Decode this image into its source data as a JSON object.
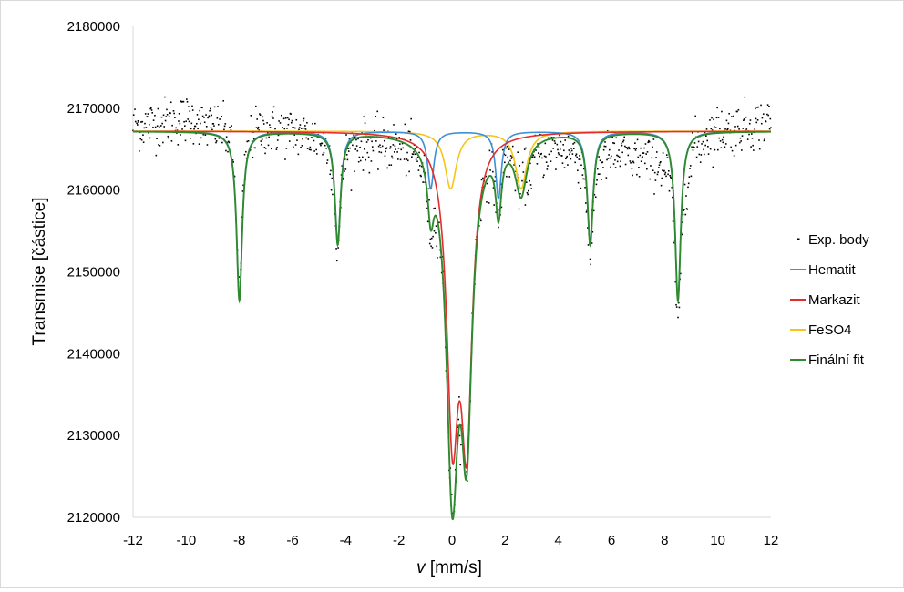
{
  "chart_data": {
    "type": "scatter",
    "title": "",
    "xlabel_var": "v",
    "xlabel_unit": " [mm/s]",
    "ylabel": "Transmise [částice]",
    "xlim": [
      -12,
      12
    ],
    "ylim": [
      2120000,
      2180000
    ],
    "x_ticks": [
      -12,
      -10,
      -8,
      -6,
      -4,
      -2,
      0,
      2,
      4,
      6,
      8,
      10,
      12
    ],
    "y_ticks": [
      2120000,
      2130000,
      2140000,
      2150000,
      2160000,
      2170000,
      2180000
    ],
    "x_tick_labels": [
      "-12",
      "-10",
      "-8",
      "-6",
      "-4",
      "-2",
      "0",
      "2",
      "4",
      "6",
      "8",
      "10",
      "12"
    ],
    "y_tick_labels": [
      "2120000",
      "2130000",
      "2140000",
      "2150000",
      "2160000",
      "2170000",
      "2180000"
    ],
    "grid": false,
    "legend_position": "right",
    "baseline": 2167200,
    "series": [
      {
        "name": "Exp. body",
        "kind": "points",
        "color": "#000000",
        "description": "experimental data points, noisy around the fit",
        "sample_points": [
          [
            -11.9,
            2168800
          ],
          [
            -11.5,
            2165500
          ],
          [
            -11.0,
            2166800
          ],
          [
            -10.5,
            2167600
          ],
          [
            -10.0,
            2166000
          ],
          [
            -9.5,
            2168300
          ],
          [
            -9.0,
            2170500
          ],
          [
            -8.6,
            2167000
          ],
          [
            -8.3,
            2163000
          ],
          [
            -8.1,
            2153000
          ],
          [
            -8.0,
            2148000
          ],
          [
            -7.9,
            2151500
          ],
          [
            -7.6,
            2161000
          ],
          [
            -7.2,
            2165000
          ],
          [
            -6.5,
            2167000
          ],
          [
            -6.0,
            2169000
          ],
          [
            -5.5,
            2168500
          ],
          [
            -5.0,
            2167500
          ],
          [
            -4.5,
            2163000
          ],
          [
            -4.3,
            2152000
          ],
          [
            -4.1,
            2157000
          ],
          [
            -3.8,
            2165500
          ],
          [
            -3.0,
            2168000
          ],
          [
            -2.5,
            2167500
          ],
          [
            -2.0,
            2169500
          ],
          [
            -1.5,
            2166000
          ],
          [
            -1.0,
            2163000
          ],
          [
            -0.85,
            2158000
          ],
          [
            -0.7,
            2153500
          ],
          [
            -0.5,
            2160500
          ],
          [
            -0.2,
            2152000
          ],
          [
            0.0,
            2126000
          ],
          [
            0.1,
            2133000
          ],
          [
            0.3,
            2145000
          ],
          [
            0.5,
            2128000
          ],
          [
            0.55,
            2126500
          ],
          [
            0.7,
            2150000
          ],
          [
            1.0,
            2160000
          ],
          [
            1.3,
            2162500
          ],
          [
            1.6,
            2158000
          ],
          [
            1.8,
            2154000
          ],
          [
            2.1,
            2162000
          ],
          [
            2.5,
            2161500
          ],
          [
            2.7,
            2159000
          ],
          [
            3.0,
            2163000
          ],
          [
            3.5,
            2164000
          ],
          [
            4.0,
            2162000
          ],
          [
            4.5,
            2160000
          ],
          [
            5.0,
            2158000
          ],
          [
            5.2,
            2149000
          ],
          [
            5.4,
            2156000
          ],
          [
            5.8,
            2162000
          ],
          [
            6.5,
            2163500
          ],
          [
            7.0,
            2162000
          ],
          [
            7.5,
            2161500
          ],
          [
            8.0,
            2158000
          ],
          [
            8.3,
            2153000
          ],
          [
            8.5,
            2145000
          ],
          [
            8.7,
            2143000
          ],
          [
            9.0,
            2160500
          ],
          [
            9.5,
            2163000
          ],
          [
            10.0,
            2165500
          ],
          [
            10.5,
            2167500
          ],
          [
            11.0,
            2169000
          ],
          [
            11.5,
            2170000
          ],
          [
            11.9,
            2168500
          ]
        ]
      },
      {
        "name": "Hematit",
        "kind": "line",
        "color": "#3d8fd6",
        "peaks": [
          {
            "x": -8.0,
            "depth": 20600,
            "hwhm": 0.13
          },
          {
            "x": -4.3,
            "depth": 13600,
            "hwhm": 0.13
          },
          {
            "x": -0.8,
            "depth": 7000,
            "hwhm": 0.14
          },
          {
            "x": 1.75,
            "depth": 8200,
            "hwhm": 0.13
          },
          {
            "x": 5.2,
            "depth": 13600,
            "hwhm": 0.13
          },
          {
            "x": 8.5,
            "depth": 20600,
            "hwhm": 0.13
          }
        ]
      },
      {
        "name": "Markazit",
        "kind": "line",
        "color": "#e32d2d",
        "peaks": [
          {
            "x": 0.02,
            "depth": 34300,
            "hwhm": 0.26
          },
          {
            "x": 0.55,
            "depth": 34300,
            "hwhm": 0.25
          }
        ]
      },
      {
        "name": "FeSO4",
        "kind": "line",
        "color": "#f5c518",
        "peaks": [
          {
            "x": -0.05,
            "depth": 7000,
            "hwhm": 0.26
          },
          {
            "x": 2.6,
            "depth": 7000,
            "hwhm": 0.26
          }
        ]
      },
      {
        "name": "Finální fit",
        "kind": "line",
        "color": "#2f8a2f",
        "description": "sum of Hematit, Markazit and FeSO4 components"
      }
    ]
  }
}
